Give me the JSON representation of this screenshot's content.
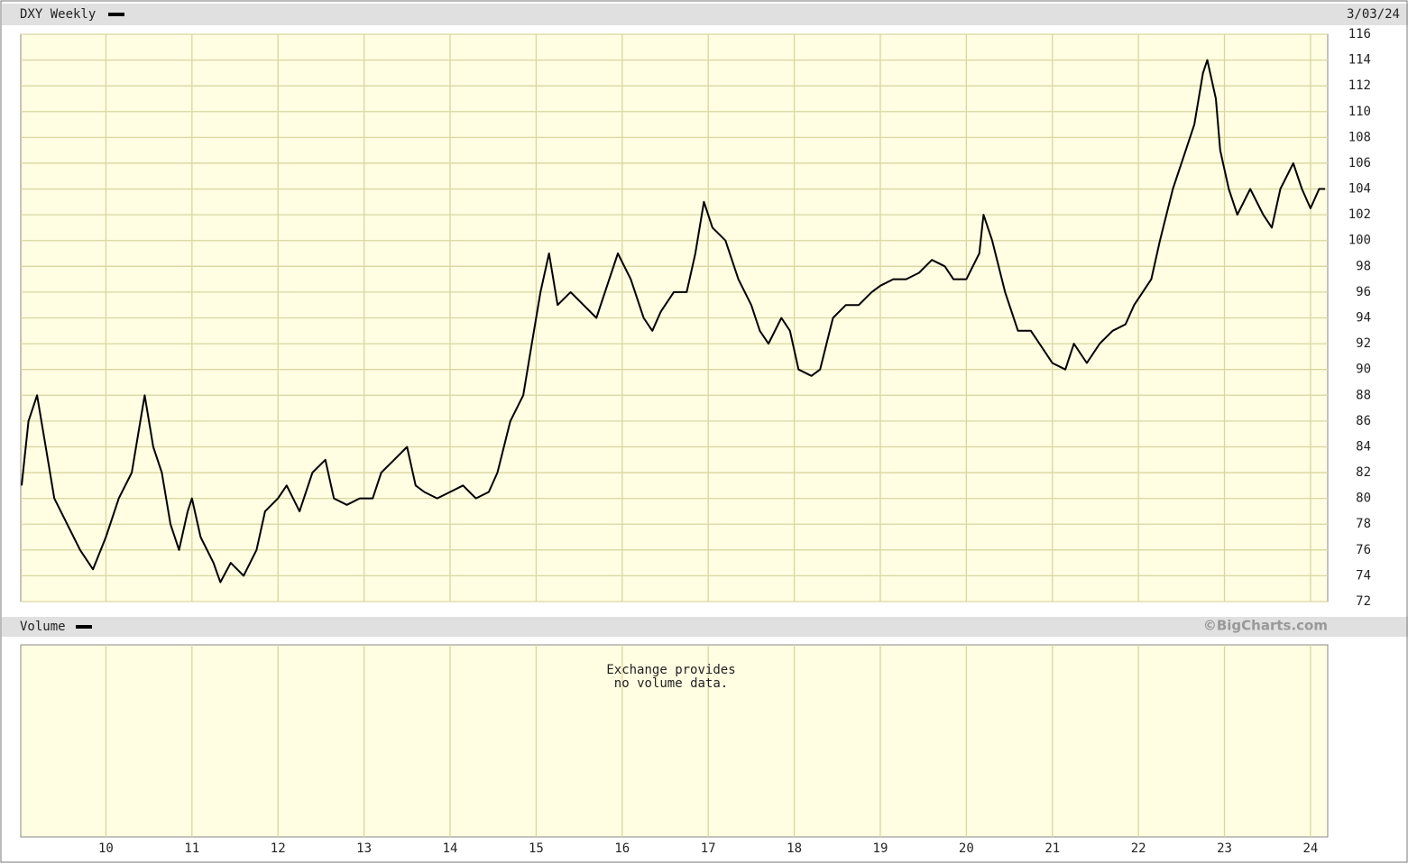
{
  "chart_data": {
    "type": "line",
    "date_label": "3/03/24",
    "volume_title": "Volume",
    "source": "©BigCharts.com",
    "volume_note": [
      "Exchange provides",
      "no volume data."
    ],
    "x": [
      9.02,
      9.1,
      9.2,
      9.3,
      9.4,
      9.55,
      9.7,
      9.85,
      10.0,
      10.15,
      10.3,
      10.4,
      10.45,
      10.55,
      10.65,
      10.75,
      10.85,
      10.95,
      11.0,
      11.1,
      11.25,
      11.33,
      11.45,
      11.6,
      11.75,
      11.85,
      12.0,
      12.1,
      12.25,
      12.4,
      12.55,
      12.65,
      12.8,
      12.95,
      13.1,
      13.2,
      13.35,
      13.5,
      13.6,
      13.7,
      13.85,
      14.0,
      14.15,
      14.3,
      14.45,
      14.55,
      14.7,
      14.85,
      14.95,
      15.05,
      15.15,
      15.25,
      15.4,
      15.55,
      15.7,
      15.85,
      15.95,
      16.1,
      16.25,
      16.35,
      16.45,
      16.6,
      16.75,
      16.85,
      16.95,
      17.05,
      17.2,
      17.35,
      17.5,
      17.6,
      17.7,
      17.85,
      17.95,
      18.05,
      18.2,
      18.3,
      18.45,
      18.6,
      18.75,
      18.9,
      19.0,
      19.15,
      19.3,
      19.45,
      19.6,
      19.75,
      19.85,
      20.0,
      20.15,
      20.2,
      20.3,
      20.45,
      20.6,
      20.75,
      20.9,
      21.0,
      21.15,
      21.25,
      21.4,
      21.55,
      21.7,
      21.85,
      21.95,
      22.05,
      22.15,
      22.25,
      22.4,
      22.55,
      22.65,
      22.75,
      22.8,
      22.9,
      22.95,
      23.05,
      23.15,
      23.3,
      23.45,
      23.55,
      23.65,
      23.8,
      23.9,
      24.0,
      24.1,
      24.17
    ],
    "series": [
      {
        "name": "DXY Weekly",
        "color": "#000000",
        "values": [
          81,
          86,
          88,
          84,
          80,
          78,
          76,
          74.5,
          77,
          80,
          82,
          86,
          88,
          84,
          82,
          78,
          76,
          79,
          80,
          77,
          75,
          73.5,
          75,
          74,
          76,
          79,
          80,
          81,
          79,
          82,
          83,
          80,
          79.5,
          80,
          80,
          82,
          83,
          84,
          81,
          80.5,
          80,
          80.5,
          81,
          80,
          80.5,
          82,
          86,
          88,
          92,
          96,
          99,
          95,
          96,
          95,
          94,
          97,
          99,
          97,
          94,
          93,
          94.5,
          96,
          96,
          99,
          103,
          101,
          100,
          97,
          95,
          93,
          92,
          94,
          93,
          90,
          89.5,
          90,
          94,
          95,
          95,
          96,
          96.5,
          97,
          97,
          97.5,
          98.5,
          98,
          97,
          97,
          99,
          102,
          100,
          96,
          93,
          93,
          91.5,
          90.5,
          90,
          92,
          90.5,
          92,
          93,
          93.5,
          95,
          96,
          97,
          100,
          104,
          107,
          109,
          113,
          114,
          111,
          107,
          104,
          102,
          104,
          102,
          101,
          104,
          106,
          104,
          102.5,
          104,
          104
        ]
      }
    ],
    "xlim": [
      9.01,
      24.2
    ],
    "xticks": [
      10,
      11,
      12,
      13,
      14,
      15,
      16,
      17,
      18,
      19,
      20,
      21,
      22,
      23,
      24
    ],
    "ylim": [
      72,
      116
    ],
    "yticks": [
      72,
      74,
      76,
      78,
      80,
      82,
      84,
      86,
      88,
      90,
      92,
      94,
      96,
      98,
      100,
      102,
      104,
      106,
      108,
      110,
      112,
      114,
      116
    ],
    "grid": true
  }
}
